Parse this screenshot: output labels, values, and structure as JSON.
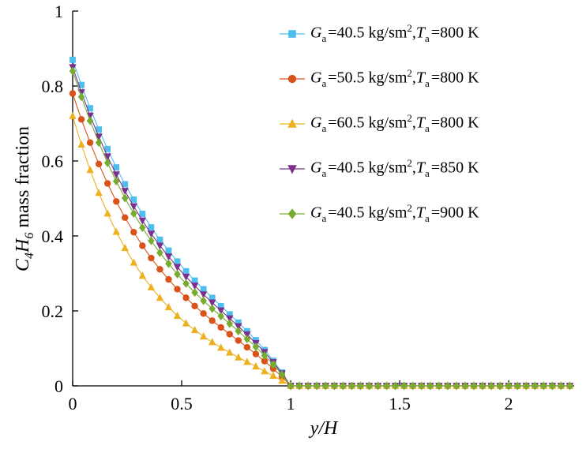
{
  "chart_data": {
    "type": "line",
    "title": "",
    "xlabel": "y/H",
    "ylabel_parts": {
      "v1": "C",
      "s1": "4",
      "v2": "H",
      "s2": "6",
      "rest": " mass fraction"
    },
    "xlim": [
      0,
      2.3
    ],
    "ylim": [
      0,
      1
    ],
    "grid": false,
    "legend_position": "upper-right",
    "xticks": [
      0,
      0.5,
      1,
      1.5,
      2
    ],
    "xtick_labels": [
      "0",
      "0.5",
      "1",
      "1.5",
      "2"
    ],
    "yticks": [
      0,
      0.2,
      0.4,
      0.6,
      0.8,
      1
    ],
    "ytick_labels": [
      "0",
      "0.2",
      "0.4",
      "0.6",
      "0.8",
      "1"
    ],
    "x": [
      0,
      0.04,
      0.08,
      0.12,
      0.16,
      0.2,
      0.24,
      0.28,
      0.32,
      0.36,
      0.4,
      0.44,
      0.48,
      0.52,
      0.56,
      0.6,
      0.64,
      0.68,
      0.72,
      0.76,
      0.8,
      0.84,
      0.88,
      0.92,
      0.96,
      1,
      1.04,
      1.08,
      1.12,
      1.16,
      1.2,
      1.24,
      1.28,
      1.32,
      1.36,
      1.4,
      1.44,
      1.48,
      1.52,
      1.56,
      1.6,
      1.64,
      1.68,
      1.72,
      1.76,
      1.8,
      1.84,
      1.88,
      1.92,
      1.96,
      2,
      2.04,
      2.08,
      2.12,
      2.16,
      2.2,
      2.24,
      2.28
    ],
    "series": [
      {
        "name": "Ga=40.5 kg/sm2, Ta=800 K",
        "marker": "square",
        "color": "#4DBEEE",
        "label_parts": {
          "v1": "G",
          "s1": "a",
          "t1": "=40.5 kg/sm",
          "p1": "2",
          "sep": ",",
          "v2": "T",
          "s2": "a",
          "t2": "=800 K"
        },
        "values": [
          0.87,
          0.803,
          0.741,
          0.684,
          0.632,
          0.583,
          0.538,
          0.497,
          0.459,
          0.423,
          0.39,
          0.361,
          0.332,
          0.306,
          0.281,
          0.258,
          0.235,
          0.213,
          0.191,
          0.169,
          0.146,
          0.122,
          0.096,
          0.067,
          0.036,
          0,
          0,
          0,
          0,
          0,
          0,
          0,
          0,
          0,
          0,
          0,
          0,
          0,
          0,
          0,
          0,
          0,
          0,
          0,
          0,
          0,
          0,
          0,
          0,
          0,
          0,
          0,
          0,
          0,
          0,
          0,
          0,
          0
        ]
      },
      {
        "name": "Ga=50.5 kg/sm2, Ta=800 K",
        "marker": "circle",
        "color": "#D95319",
        "label_parts": {
          "v1": "G",
          "s1": "a",
          "t1": "=50.5 kg/sm",
          "p1": "2",
          "sep": ",",
          "v2": "T",
          "s2": "a",
          "t2": "=800 K"
        },
        "values": [
          0.78,
          0.711,
          0.649,
          0.592,
          0.54,
          0.492,
          0.449,
          0.41,
          0.374,
          0.341,
          0.311,
          0.284,
          0.258,
          0.235,
          0.213,
          0.193,
          0.174,
          0.156,
          0.138,
          0.121,
          0.103,
          0.085,
          0.066,
          0.046,
          0.024,
          0,
          0,
          0,
          0,
          0,
          0,
          0,
          0,
          0,
          0,
          0,
          0,
          0,
          0,
          0,
          0,
          0,
          0,
          0,
          0,
          0,
          0,
          0,
          0,
          0,
          0,
          0,
          0,
          0,
          0,
          0,
          0,
          0
        ]
      },
      {
        "name": "Ga=60.5 kg/sm2, Ta=800 K",
        "marker": "triangle-up",
        "color": "#EDB120",
        "label_parts": {
          "v1": "G",
          "s1": "a",
          "t1": "=60.5 kg/sm",
          "p1": "2",
          "sep": ",",
          "v2": "T",
          "s2": "a",
          "t2": "=800 K"
        },
        "values": [
          0.72,
          0.644,
          0.576,
          0.515,
          0.46,
          0.411,
          0.368,
          0.329,
          0.294,
          0.263,
          0.235,
          0.21,
          0.187,
          0.167,
          0.149,
          0.132,
          0.117,
          0.102,
          0.089,
          0.076,
          0.064,
          0.052,
          0.039,
          0.027,
          0.014,
          0,
          0,
          0,
          0,
          0,
          0,
          0,
          0,
          0,
          0,
          0,
          0,
          0,
          0,
          0,
          0,
          0,
          0,
          0,
          0,
          0,
          0,
          0,
          0,
          0,
          0,
          0,
          0,
          0,
          0,
          0,
          0,
          0
        ]
      },
      {
        "name": "Ga=40.5 kg/sm2, Ta=850 K",
        "marker": "triangle-down",
        "color": "#7E2F8E",
        "label_parts": {
          "v1": "G",
          "s1": "a",
          "t1": "=40.5 kg/sm",
          "p1": "2",
          "sep": ",",
          "v2": "T",
          "s2": "a",
          "t2": "=850 K"
        },
        "values": [
          0.85,
          0.783,
          0.721,
          0.665,
          0.612,
          0.564,
          0.52,
          0.479,
          0.441,
          0.406,
          0.374,
          0.345,
          0.317,
          0.291,
          0.267,
          0.244,
          0.222,
          0.201,
          0.18,
          0.159,
          0.137,
          0.114,
          0.09,
          0.063,
          0.033,
          0,
          0,
          0,
          0,
          0,
          0,
          0,
          0,
          0,
          0,
          0,
          0,
          0,
          0,
          0,
          0,
          0,
          0,
          0,
          0,
          0,
          0,
          0,
          0,
          0,
          0,
          0,
          0,
          0,
          0,
          0,
          0,
          0
        ]
      },
      {
        "name": "Ga=40.5 kg/sm2, Ta=900 K",
        "marker": "diamond",
        "color": "#77AC30",
        "label_parts": {
          "v1": "G",
          "s1": "a",
          "t1": "=40.5 kg/sm",
          "p1": "2",
          "sep": ",",
          "v2": "T",
          "s2": "a",
          "t2": "=900 K"
        },
        "values": [
          0.84,
          0.771,
          0.707,
          0.649,
          0.595,
          0.546,
          0.501,
          0.46,
          0.422,
          0.387,
          0.355,
          0.326,
          0.298,
          0.273,
          0.249,
          0.227,
          0.206,
          0.186,
          0.166,
          0.146,
          0.125,
          0.104,
          0.081,
          0.057,
          0.03,
          0,
          0,
          0,
          0,
          0,
          0,
          0,
          0,
          0,
          0,
          0,
          0,
          0,
          0,
          0,
          0,
          0,
          0,
          0,
          0,
          0,
          0,
          0,
          0,
          0,
          0,
          0,
          0,
          0,
          0,
          0,
          0,
          0
        ]
      }
    ]
  }
}
